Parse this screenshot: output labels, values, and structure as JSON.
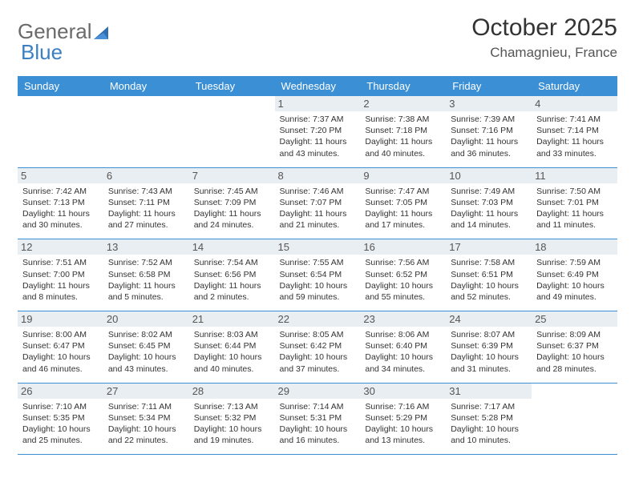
{
  "brand": {
    "part1": "General",
    "part2": "Blue"
  },
  "title": "October 2025",
  "location": "Chamagnieu, France",
  "colors": {
    "header_bg": "#3b8fd4",
    "header_text": "#ffffff",
    "daynum_bg": "#e9eef2",
    "row_border": "#3b8fd4",
    "text": "#333333",
    "logo_gray": "#6a6a6a",
    "logo_blue": "#3b7fc4"
  },
  "weekdays": [
    "Sunday",
    "Monday",
    "Tuesday",
    "Wednesday",
    "Thursday",
    "Friday",
    "Saturday"
  ],
  "weeks": [
    [
      null,
      null,
      null,
      {
        "d": "1",
        "sr": "7:37 AM",
        "ss": "7:20 PM",
        "dl": "11 hours and 43 minutes."
      },
      {
        "d": "2",
        "sr": "7:38 AM",
        "ss": "7:18 PM",
        "dl": "11 hours and 40 minutes."
      },
      {
        "d": "3",
        "sr": "7:39 AM",
        "ss": "7:16 PM",
        "dl": "11 hours and 36 minutes."
      },
      {
        "d": "4",
        "sr": "7:41 AM",
        "ss": "7:14 PM",
        "dl": "11 hours and 33 minutes."
      }
    ],
    [
      {
        "d": "5",
        "sr": "7:42 AM",
        "ss": "7:13 PM",
        "dl": "11 hours and 30 minutes."
      },
      {
        "d": "6",
        "sr": "7:43 AM",
        "ss": "7:11 PM",
        "dl": "11 hours and 27 minutes."
      },
      {
        "d": "7",
        "sr": "7:45 AM",
        "ss": "7:09 PM",
        "dl": "11 hours and 24 minutes."
      },
      {
        "d": "8",
        "sr": "7:46 AM",
        "ss": "7:07 PM",
        "dl": "11 hours and 21 minutes."
      },
      {
        "d": "9",
        "sr": "7:47 AM",
        "ss": "7:05 PM",
        "dl": "11 hours and 17 minutes."
      },
      {
        "d": "10",
        "sr": "7:49 AM",
        "ss": "7:03 PM",
        "dl": "11 hours and 14 minutes."
      },
      {
        "d": "11",
        "sr": "7:50 AM",
        "ss": "7:01 PM",
        "dl": "11 hours and 11 minutes."
      }
    ],
    [
      {
        "d": "12",
        "sr": "7:51 AM",
        "ss": "7:00 PM",
        "dl": "11 hours and 8 minutes."
      },
      {
        "d": "13",
        "sr": "7:52 AM",
        "ss": "6:58 PM",
        "dl": "11 hours and 5 minutes."
      },
      {
        "d": "14",
        "sr": "7:54 AM",
        "ss": "6:56 PM",
        "dl": "11 hours and 2 minutes."
      },
      {
        "d": "15",
        "sr": "7:55 AM",
        "ss": "6:54 PM",
        "dl": "10 hours and 59 minutes."
      },
      {
        "d": "16",
        "sr": "7:56 AM",
        "ss": "6:52 PM",
        "dl": "10 hours and 55 minutes."
      },
      {
        "d": "17",
        "sr": "7:58 AM",
        "ss": "6:51 PM",
        "dl": "10 hours and 52 minutes."
      },
      {
        "d": "18",
        "sr": "7:59 AM",
        "ss": "6:49 PM",
        "dl": "10 hours and 49 minutes."
      }
    ],
    [
      {
        "d": "19",
        "sr": "8:00 AM",
        "ss": "6:47 PM",
        "dl": "10 hours and 46 minutes."
      },
      {
        "d": "20",
        "sr": "8:02 AM",
        "ss": "6:45 PM",
        "dl": "10 hours and 43 minutes."
      },
      {
        "d": "21",
        "sr": "8:03 AM",
        "ss": "6:44 PM",
        "dl": "10 hours and 40 minutes."
      },
      {
        "d": "22",
        "sr": "8:05 AM",
        "ss": "6:42 PM",
        "dl": "10 hours and 37 minutes."
      },
      {
        "d": "23",
        "sr": "8:06 AM",
        "ss": "6:40 PM",
        "dl": "10 hours and 34 minutes."
      },
      {
        "d": "24",
        "sr": "8:07 AM",
        "ss": "6:39 PM",
        "dl": "10 hours and 31 minutes."
      },
      {
        "d": "25",
        "sr": "8:09 AM",
        "ss": "6:37 PM",
        "dl": "10 hours and 28 minutes."
      }
    ],
    [
      {
        "d": "26",
        "sr": "7:10 AM",
        "ss": "5:35 PM",
        "dl": "10 hours and 25 minutes."
      },
      {
        "d": "27",
        "sr": "7:11 AM",
        "ss": "5:34 PM",
        "dl": "10 hours and 22 minutes."
      },
      {
        "d": "28",
        "sr": "7:13 AM",
        "ss": "5:32 PM",
        "dl": "10 hours and 19 minutes."
      },
      {
        "d": "29",
        "sr": "7:14 AM",
        "ss": "5:31 PM",
        "dl": "10 hours and 16 minutes."
      },
      {
        "d": "30",
        "sr": "7:16 AM",
        "ss": "5:29 PM",
        "dl": "10 hours and 13 minutes."
      },
      {
        "d": "31",
        "sr": "7:17 AM",
        "ss": "5:28 PM",
        "dl": "10 hours and 10 minutes."
      },
      null
    ]
  ],
  "labels": {
    "sunrise": "Sunrise: ",
    "sunset": "Sunset: ",
    "daylight": "Daylight: "
  }
}
